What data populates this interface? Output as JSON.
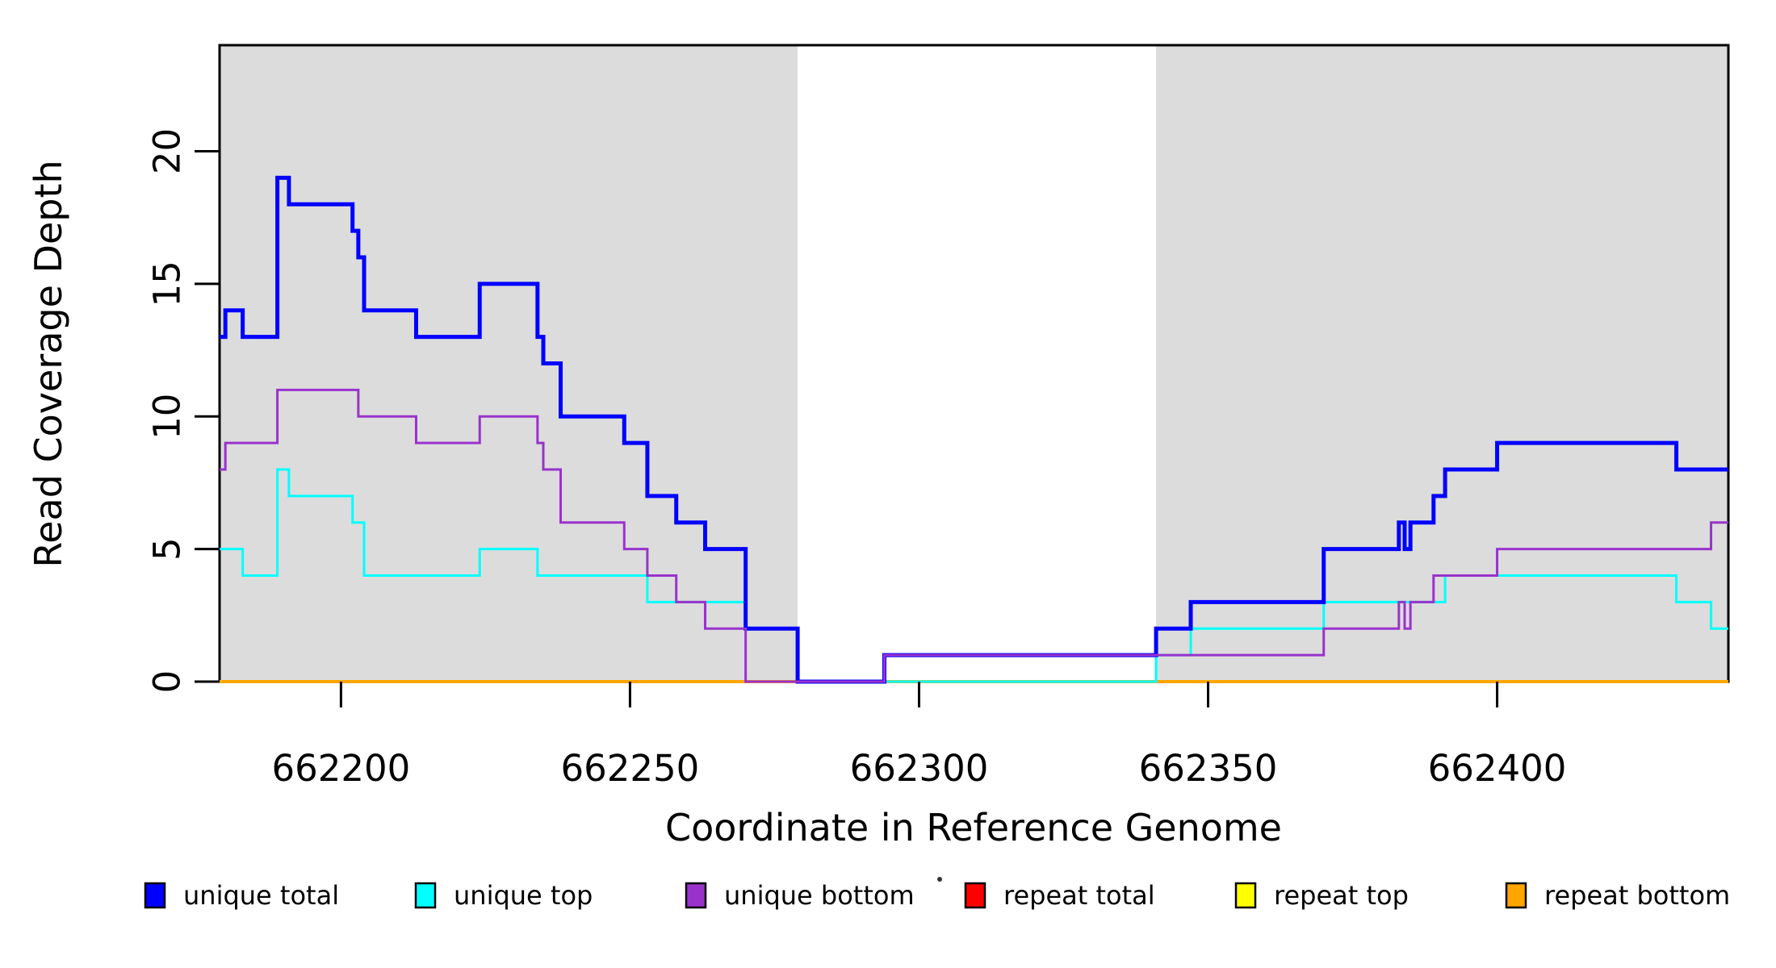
{
  "chart_data": {
    "type": "line",
    "subtype": "step-coverage-plot",
    "title": "",
    "xlabel": "Coordinate in Reference Genome",
    "ylabel": "Read Coverage Depth",
    "xlim": [
      662179,
      662440
    ],
    "ylim": [
      0,
      24
    ],
    "x_ticks": [
      662200,
      662250,
      662300,
      662350,
      662400
    ],
    "x_tick_labels": [
      "662200",
      "662250",
      "662300",
      "662350",
      "662400"
    ],
    "y_ticks": [
      0,
      5,
      10,
      15,
      20
    ],
    "y_tick_labels": [
      "0",
      "5",
      "10",
      "15",
      "20"
    ],
    "grid": false,
    "background_color": "#FFFFFF",
    "shade_color": "#DCDCDC",
    "shaded_regions": [
      {
        "from": 662179,
        "to": 662279
      },
      {
        "from": 662341,
        "to": 662440
      }
    ],
    "series": [
      {
        "name": "repeat total",
        "color": "#FF0000",
        "line_width": 3,
        "x_end": 662440,
        "steps": [
          [
            662179,
            0
          ]
        ]
      },
      {
        "name": "repeat top",
        "color": "#FFFF00",
        "line_width": 3,
        "x_end": 662440,
        "steps": [
          [
            662179,
            0
          ]
        ]
      },
      {
        "name": "repeat bottom",
        "color": "#FFA500",
        "line_width": 4,
        "x_end": 662440,
        "steps": [
          [
            662179,
            0
          ]
        ]
      },
      {
        "name": "unique top",
        "color": "#00FFFF",
        "line_width": 3,
        "x_end": 662440,
        "steps": [
          [
            662179,
            5
          ],
          [
            662183,
            4
          ],
          [
            662189,
            8
          ],
          [
            662191,
            7
          ],
          [
            662202,
            6
          ],
          [
            662204,
            4
          ],
          [
            662224,
            5
          ],
          [
            662234,
            4
          ],
          [
            662253,
            3
          ],
          [
            662270,
            2
          ],
          [
            662279,
            0
          ],
          [
            662341,
            1
          ],
          [
            662347,
            2
          ],
          [
            662370,
            3
          ],
          [
            662391,
            4
          ],
          [
            662431,
            3
          ],
          [
            662437,
            2
          ]
        ]
      },
      {
        "name": "unique total",
        "color": "#0000FF",
        "line_width": 5,
        "x_end": 662440,
        "steps": [
          [
            662179,
            13
          ],
          [
            662180,
            14
          ],
          [
            662183,
            13
          ],
          [
            662189,
            19
          ],
          [
            662191,
            18
          ],
          [
            662202,
            17
          ],
          [
            662203,
            16
          ],
          [
            662204,
            14
          ],
          [
            662213,
            13
          ],
          [
            662224,
            15
          ],
          [
            662234,
            13
          ],
          [
            662235,
            12
          ],
          [
            662238,
            10
          ],
          [
            662249,
            9
          ],
          [
            662253,
            7
          ],
          [
            662258,
            6
          ],
          [
            662263,
            5
          ],
          [
            662270,
            2
          ],
          [
            662279,
            0
          ],
          [
            662294,
            1
          ],
          [
            662341,
            2
          ],
          [
            662347,
            3
          ],
          [
            662370,
            5
          ],
          [
            662383,
            6
          ],
          [
            662384,
            5
          ],
          [
            662385,
            6
          ],
          [
            662389,
            7
          ],
          [
            662391,
            8
          ],
          [
            662400,
            9
          ],
          [
            662431,
            8
          ]
        ]
      },
      {
        "name": "unique bottom",
        "color": "#9932CC",
        "line_width": 3,
        "x_end": 662440,
        "steps": [
          [
            662179,
            8
          ],
          [
            662180,
            9
          ],
          [
            662189,
            11
          ],
          [
            662203,
            10
          ],
          [
            662213,
            9
          ],
          [
            662224,
            10
          ],
          [
            662234,
            9
          ],
          [
            662235,
            8
          ],
          [
            662238,
            6
          ],
          [
            662249,
            5
          ],
          [
            662253,
            4
          ],
          [
            662258,
            3
          ],
          [
            662263,
            2
          ],
          [
            662270,
            0
          ],
          [
            662294,
            1
          ],
          [
            662370,
            2
          ],
          [
            662383,
            3
          ],
          [
            662384,
            2
          ],
          [
            662385,
            3
          ],
          [
            662389,
            4
          ],
          [
            662400,
            5
          ],
          [
            662437,
            6
          ]
        ]
      }
    ],
    "legend": {
      "position": "bottom",
      "items": [
        {
          "label": "unique total",
          "color": "#0000FF"
        },
        {
          "label": "unique top",
          "color": "#00FFFF"
        },
        {
          "label": "unique bottom",
          "color": "#9932CC"
        },
        {
          "label": "repeat total",
          "color": "#FF0000"
        },
        {
          "label": "repeat top",
          "color": "#FFFF00"
        },
        {
          "label": "repeat bottom",
          "color": "#FFA500"
        }
      ]
    },
    "stray_mark": {
      "x": 1164,
      "y": 1090
    }
  }
}
